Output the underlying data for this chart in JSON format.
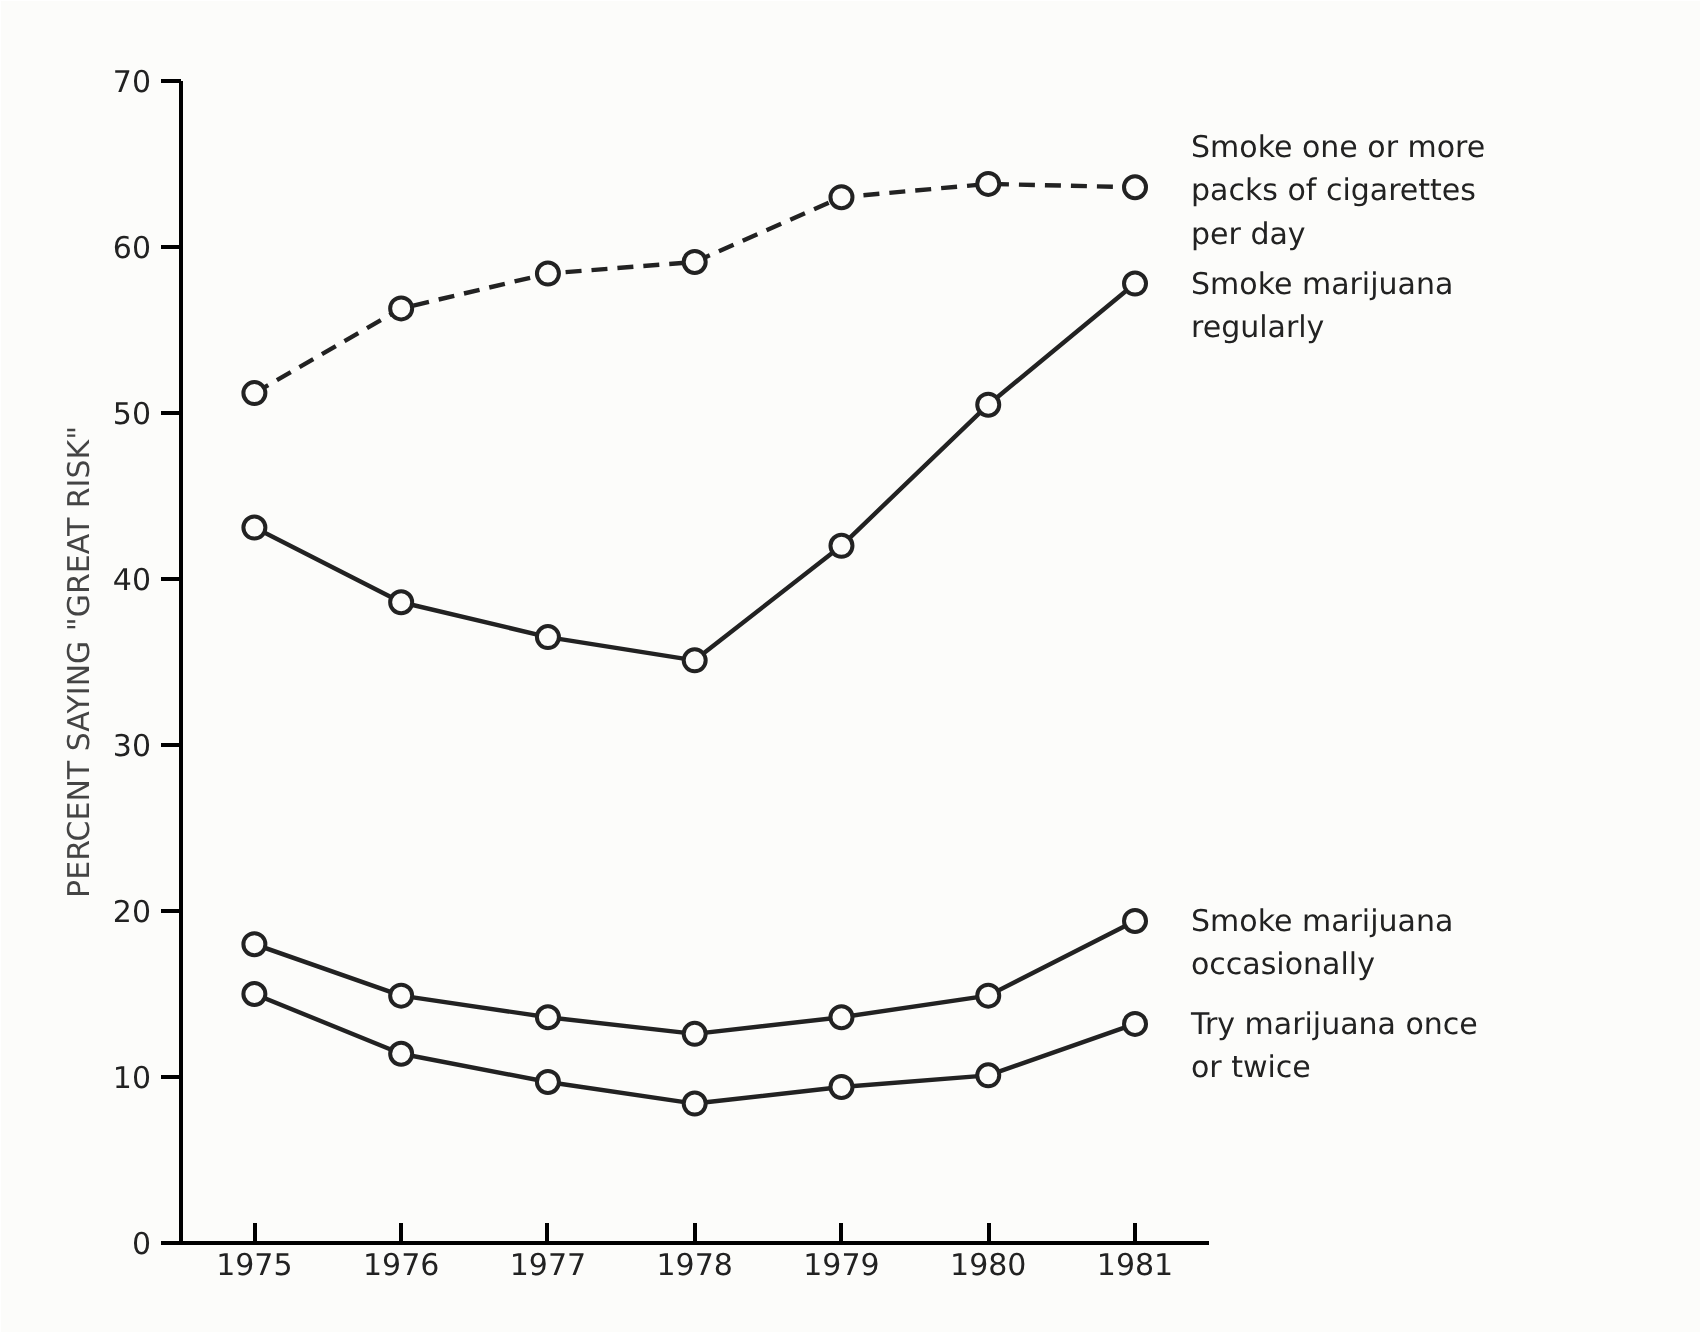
{
  "chart_data": {
    "type": "line",
    "ylabel": "PERCENT SAYING \"GREAT RISK\"",
    "x": [
      1975,
      1976,
      1977,
      1978,
      1979,
      1980,
      1981
    ],
    "xlim": [
      1974.5,
      1981.5
    ],
    "xticks": [
      1975,
      1976,
      1977,
      1978,
      1979,
      1980,
      1981
    ],
    "ylim": [
      0,
      70
    ],
    "yticks": [
      0,
      10,
      20,
      30,
      40,
      50,
      60,
      70
    ],
    "grid": false,
    "legend": false,
    "marker": "circle",
    "line_style": "solid",
    "series": [
      {
        "name": "Smoke one or more packs of cigarettes per day",
        "color": "#222222",
        "line_style": "dashed",
        "values": [
          51.2,
          56.3,
          58.4,
          59.1,
          63.0,
          63.8,
          63.6
        ]
      },
      {
        "name": "Smoke marijuana regularly",
        "color": "#222222",
        "values": [
          43.1,
          38.6,
          36.5,
          35.1,
          42.0,
          50.5,
          57.8
        ]
      },
      {
        "name": "Smoke marijuana occasionally",
        "color": "#222222",
        "values": [
          18.0,
          14.9,
          13.6,
          12.6,
          13.6,
          14.9,
          19.4
        ]
      },
      {
        "name": "Try marijuana once or twice",
        "color": "#222222",
        "values": [
          15.0,
          11.4,
          9.7,
          8.4,
          9.4,
          10.1,
          13.2
        ]
      }
    ]
  }
}
